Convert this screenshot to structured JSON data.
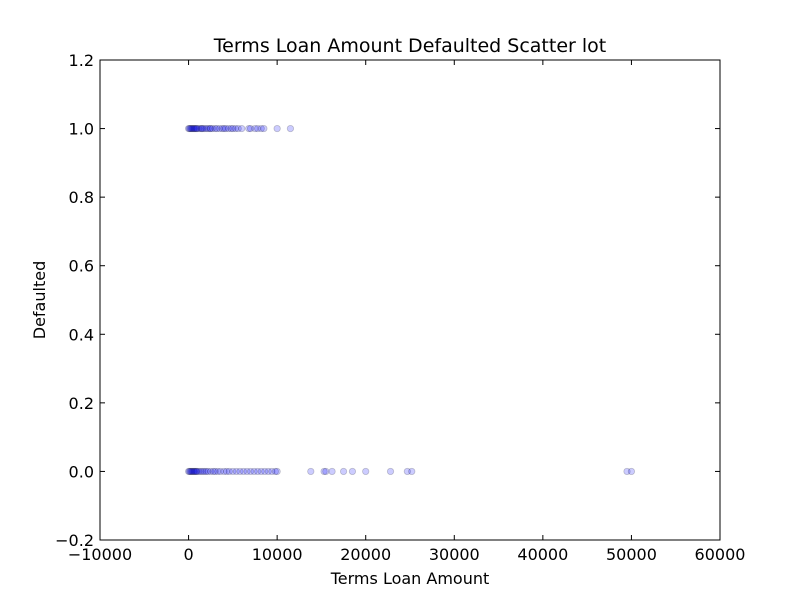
{
  "chart_data": {
    "type": "scatter",
    "title": "Terms Loan Amount Defaulted Scatter lot",
    "xlabel": "Terms Loan Amount",
    "ylabel": "Defaulted",
    "xlim": [
      -10000,
      60000
    ],
    "ylim": [
      -0.2,
      1.2
    ],
    "grid": false,
    "legend": "none",
    "x_ticks": [
      -10000,
      0,
      10000,
      20000,
      30000,
      40000,
      50000,
      60000
    ],
    "x_tick_labels": [
      "−10000",
      "0",
      "10000",
      "20000",
      "30000",
      "40000",
      "50000",
      "60000"
    ],
    "y_ticks": [
      -0.2,
      0.0,
      0.2,
      0.4,
      0.6,
      0.8,
      1.0,
      1.2
    ],
    "y_tick_labels": [
      "−0.2",
      "0.0",
      "0.2",
      "0.4",
      "0.6",
      "0.8",
      "1.0",
      "1.2"
    ],
    "marker_color": "#0000ff",
    "marker_edge_color": "#000000",
    "marker_alpha": 0.2,
    "series": [
      {
        "values_note_free": true,
        "points": [
          {
            "x": 0,
            "y": 1
          },
          {
            "x": 100,
            "y": 1
          },
          {
            "x": 200,
            "y": 1
          },
          {
            "x": 300,
            "y": 1
          },
          {
            "x": 400,
            "y": 1
          },
          {
            "x": 500,
            "y": 1
          },
          {
            "x": 600,
            "y": 1
          },
          {
            "x": 700,
            "y": 1
          },
          {
            "x": 800,
            "y": 1
          },
          {
            "x": 900,
            "y": 1
          },
          {
            "x": 1000,
            "y": 1
          },
          {
            "x": 1200,
            "y": 1
          },
          {
            "x": 1400,
            "y": 1
          },
          {
            "x": 1500,
            "y": 1
          },
          {
            "x": 1600,
            "y": 1
          },
          {
            "x": 1800,
            "y": 1
          },
          {
            "x": 2000,
            "y": 1
          },
          {
            "x": 2200,
            "y": 1
          },
          {
            "x": 2400,
            "y": 1
          },
          {
            "x": 2500,
            "y": 1
          },
          {
            "x": 2700,
            "y": 1
          },
          {
            "x": 3000,
            "y": 1
          },
          {
            "x": 3200,
            "y": 1
          },
          {
            "x": 3500,
            "y": 1
          },
          {
            "x": 3800,
            "y": 1
          },
          {
            "x": 4000,
            "y": 1
          },
          {
            "x": 4200,
            "y": 1
          },
          {
            "x": 4500,
            "y": 1
          },
          {
            "x": 4800,
            "y": 1
          },
          {
            "x": 5000,
            "y": 1
          },
          {
            "x": 5300,
            "y": 1
          },
          {
            "x": 5600,
            "y": 1
          },
          {
            "x": 6000,
            "y": 1
          },
          {
            "x": 6800,
            "y": 1
          },
          {
            "x": 7000,
            "y": 1
          },
          {
            "x": 7500,
            "y": 1
          },
          {
            "x": 7800,
            "y": 1
          },
          {
            "x": 8200,
            "y": 1
          },
          {
            "x": 8500,
            "y": 1
          },
          {
            "x": 10000,
            "y": 1
          },
          {
            "x": 11500,
            "y": 1
          },
          {
            "x": 0,
            "y": 0
          },
          {
            "x": 100,
            "y": 0
          },
          {
            "x": 200,
            "y": 0
          },
          {
            "x": 300,
            "y": 0
          },
          {
            "x": 400,
            "y": 0
          },
          {
            "x": 500,
            "y": 0
          },
          {
            "x": 600,
            "y": 0
          },
          {
            "x": 700,
            "y": 0
          },
          {
            "x": 800,
            "y": 0
          },
          {
            "x": 900,
            "y": 0
          },
          {
            "x": 1000,
            "y": 0
          },
          {
            "x": 1200,
            "y": 0
          },
          {
            "x": 1400,
            "y": 0
          },
          {
            "x": 1600,
            "y": 0
          },
          {
            "x": 1800,
            "y": 0
          },
          {
            "x": 2000,
            "y": 0
          },
          {
            "x": 2200,
            "y": 0
          },
          {
            "x": 2500,
            "y": 0
          },
          {
            "x": 2800,
            "y": 0
          },
          {
            "x": 3000,
            "y": 0
          },
          {
            "x": 3300,
            "y": 0
          },
          {
            "x": 3600,
            "y": 0
          },
          {
            "x": 4000,
            "y": 0
          },
          {
            "x": 4300,
            "y": 0
          },
          {
            "x": 4600,
            "y": 0
          },
          {
            "x": 5000,
            "y": 0
          },
          {
            "x": 5400,
            "y": 0
          },
          {
            "x": 5800,
            "y": 0
          },
          {
            "x": 6200,
            "y": 0
          },
          {
            "x": 6600,
            "y": 0
          },
          {
            "x": 7000,
            "y": 0
          },
          {
            "x": 7400,
            "y": 0
          },
          {
            "x": 7800,
            "y": 0
          },
          {
            "x": 8200,
            "y": 0
          },
          {
            "x": 8600,
            "y": 0
          },
          {
            "x": 9000,
            "y": 0
          },
          {
            "x": 9400,
            "y": 0
          },
          {
            "x": 9800,
            "y": 0
          },
          {
            "x": 10000,
            "y": 0
          },
          {
            "x": 13800,
            "y": 0
          },
          {
            "x": 15300,
            "y": 0
          },
          {
            "x": 15500,
            "y": 0
          },
          {
            "x": 16200,
            "y": 0
          },
          {
            "x": 17500,
            "y": 0
          },
          {
            "x": 18500,
            "y": 0
          },
          {
            "x": 20000,
            "y": 0
          },
          {
            "x": 22800,
            "y": 0
          },
          {
            "x": 24700,
            "y": 0
          },
          {
            "x": 25200,
            "y": 0
          },
          {
            "x": 49500,
            "y": 0
          },
          {
            "x": 50000,
            "y": 0
          }
        ]
      }
    ]
  }
}
